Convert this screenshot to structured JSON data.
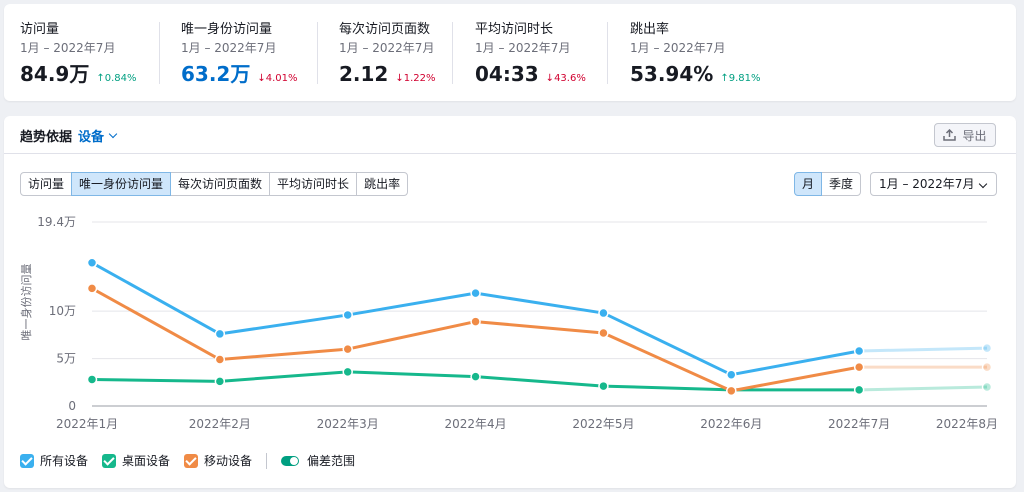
{
  "kpis": [
    {
      "title": "访问量",
      "period": "1月 – 2022年7月",
      "value": "84.9万",
      "delta": "0.84%",
      "direction": "up",
      "highlight": false
    },
    {
      "title": "唯一身份访问量",
      "period": "1月 – 2022年7月",
      "value": "63.2万",
      "delta": "4.01%",
      "direction": "down",
      "highlight": true
    },
    {
      "title": "每次访问页面数",
      "period": "1月 – 2022年7月",
      "value": "2.12",
      "delta": "1.22%",
      "direction": "down",
      "highlight": false
    },
    {
      "title": "平均访问时长",
      "period": "1月 – 2022年7月",
      "value": "04:33",
      "delta": "43.6%",
      "direction": "down",
      "highlight": false
    },
    {
      "title": "跳出率",
      "period": "1月 – 2022年7月",
      "value": "53.94%",
      "delta": "9.81%",
      "direction": "up",
      "highlight": false
    }
  ],
  "trend": {
    "title": "趋势依据",
    "dimension": "设备",
    "export_label": "导出",
    "export_icon": "upload-icon"
  },
  "tabs": [
    {
      "label": "访问量",
      "active": false
    },
    {
      "label": "唯一身份访问量",
      "active": true
    },
    {
      "label": "每次访问页面数",
      "active": false
    },
    {
      "label": "平均访问时长",
      "active": false
    },
    {
      "label": "跳出率",
      "active": false
    }
  ],
  "period_buttons": [
    {
      "label": "月",
      "active": true
    },
    {
      "label": "季度",
      "active": false
    }
  ],
  "date_range": "1月 – 2022年7月",
  "legend": {
    "items": [
      {
        "label": "所有设备",
        "color": "#3ab0ef"
      },
      {
        "label": "桌面设备",
        "color": "#16b88c"
      },
      {
        "label": "移动设备",
        "color": "#f08b46"
      }
    ],
    "toggle_label": "偏差范围"
  },
  "chart_data": {
    "type": "line",
    "ylabel": "唯一身份访问量",
    "y_tick_labels": [
      "0",
      "5万",
      "10万",
      "19.4万"
    ],
    "y_tick_values": [
      0,
      50000,
      100000,
      194000
    ],
    "ylim": [
      0,
      194000
    ],
    "x": [
      "2022年1月",
      "2022年2月",
      "2022年3月",
      "2022年4月",
      "2022年5月",
      "2022年6月",
      "2022年7月",
      "2022年8月"
    ],
    "projected_from_index": 6,
    "grid": true,
    "series": [
      {
        "name": "所有设备",
        "color": "#3ab0ef",
        "values": [
          151000,
          76000,
          96000,
          119000,
          98000,
          33000,
          58000,
          61000
        ]
      },
      {
        "name": "桌面设备",
        "color": "#16b88c",
        "values": [
          28000,
          26000,
          36000,
          31000,
          21000,
          17000,
          17000,
          20000
        ]
      },
      {
        "name": "移动设备",
        "color": "#f08b46",
        "values": [
          124000,
          49000,
          60000,
          89000,
          77000,
          16000,
          41000,
          41000
        ]
      }
    ]
  }
}
